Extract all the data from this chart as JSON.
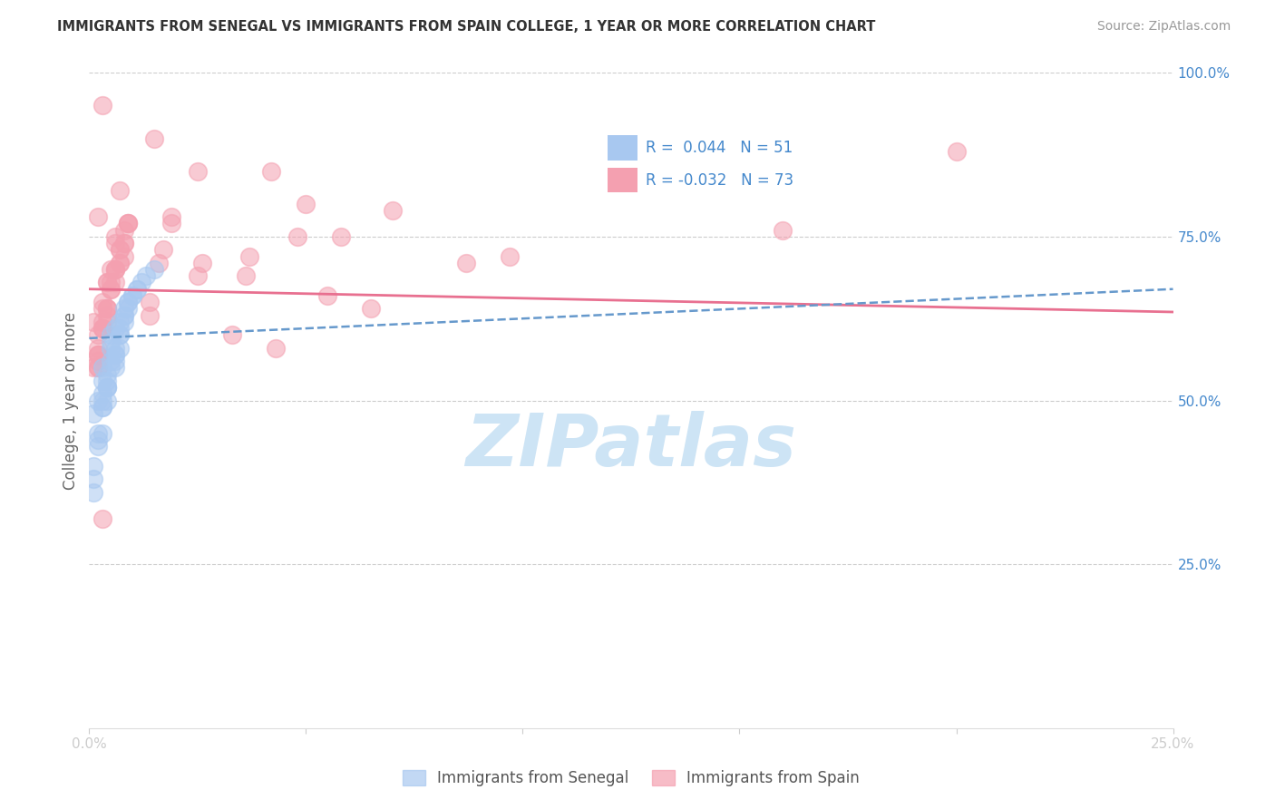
{
  "title": "IMMIGRANTS FROM SENEGAL VS IMMIGRANTS FROM SPAIN COLLEGE, 1 YEAR OR MORE CORRELATION CHART",
  "source_text": "Source: ZipAtlas.com",
  "ylabel": "College, 1 year or more",
  "xlim": [
    0.0,
    0.25
  ],
  "ylim": [
    0.0,
    1.0
  ],
  "xtick_positions": [
    0.0,
    0.05,
    0.1,
    0.15,
    0.2,
    0.25
  ],
  "xtick_labels": [
    "0.0%",
    "",
    "",
    "",
    "",
    "25.0%"
  ],
  "ytick_labels_right": [
    "100.0%",
    "75.0%",
    "50.0%",
    "25.0%"
  ],
  "ytick_positions_right": [
    1.0,
    0.75,
    0.5,
    0.25
  ],
  "background_color": "#ffffff",
  "grid_color": "#cccccc",
  "watermark": "ZIPatlas",
  "watermark_color": "#cde4f5",
  "senegal_color": "#a8c8f0",
  "spain_color": "#f4a0b0",
  "senegal_line_color": "#6699cc",
  "spain_line_color": "#e87090",
  "legend_box_color1": "#a8c8f0",
  "legend_box_color2": "#f4a0b0",
  "legend_text_color": "#4488cc",
  "axis_label_color": "#4488cc",
  "title_color": "#333333",
  "ylabel_color": "#666666",
  "source_color": "#999999",
  "senegal_points_x": [
    0.005,
    0.008,
    0.003,
    0.012,
    0.007,
    0.004,
    0.006,
    0.009,
    0.002,
    0.001,
    0.003,
    0.005,
    0.007,
    0.01,
    0.015,
    0.008,
    0.006,
    0.004,
    0.003,
    0.002,
    0.001,
    0.005,
    0.007,
    0.009,
    0.011,
    0.013,
    0.006,
    0.004,
    0.003,
    0.008,
    0.01,
    0.005,
    0.007,
    0.004,
    0.006,
    0.003,
    0.002,
    0.001,
    0.008,
    0.005,
    0.003,
    0.007,
    0.004,
    0.006,
    0.009,
    0.011,
    0.002,
    0.001,
    0.006,
    0.004,
    0.003
  ],
  "senegal_points_y": [
    0.6,
    0.63,
    0.55,
    0.68,
    0.58,
    0.52,
    0.61,
    0.65,
    0.5,
    0.48,
    0.53,
    0.59,
    0.62,
    0.66,
    0.7,
    0.64,
    0.57,
    0.54,
    0.51,
    0.45,
    0.4,
    0.58,
    0.61,
    0.65,
    0.67,
    0.69,
    0.56,
    0.52,
    0.49,
    0.63,
    0.66,
    0.55,
    0.6,
    0.53,
    0.57,
    0.5,
    0.43,
    0.38,
    0.62,
    0.56,
    0.49,
    0.6,
    0.52,
    0.58,
    0.64,
    0.67,
    0.44,
    0.36,
    0.55,
    0.5,
    0.45
  ],
  "spain_points_x": [
    0.003,
    0.007,
    0.002,
    0.05,
    0.025,
    0.015,
    0.008,
    0.004,
    0.006,
    0.009,
    0.001,
    0.003,
    0.042,
    0.017,
    0.005,
    0.008,
    0.004,
    0.006,
    0.003,
    0.002,
    0.001,
    0.07,
    0.037,
    0.025,
    0.058,
    0.014,
    0.026,
    0.003,
    0.002,
    0.009,
    0.006,
    0.004,
    0.007,
    0.005,
    0.003,
    0.048,
    0.036,
    0.014,
    0.002,
    0.097,
    0.055,
    0.033,
    0.019,
    0.016,
    0.004,
    0.002,
    0.008,
    0.2,
    0.005,
    0.003,
    0.002,
    0.087,
    0.065,
    0.043,
    0.019,
    0.006,
    0.004,
    0.002,
    0.007,
    0.16,
    0.003,
    0.009,
    0.006,
    0.004,
    0.007,
    0.005,
    0.003,
    0.002,
    0.008,
    0.006,
    0.004,
    0.002,
    0.007
  ],
  "spain_points_y": [
    0.95,
    0.82,
    0.78,
    0.8,
    0.85,
    0.9,
    0.72,
    0.68,
    0.75,
    0.77,
    0.62,
    0.65,
    0.85,
    0.73,
    0.7,
    0.76,
    0.68,
    0.74,
    0.64,
    0.6,
    0.55,
    0.79,
    0.72,
    0.69,
    0.75,
    0.65,
    0.71,
    0.61,
    0.57,
    0.77,
    0.7,
    0.64,
    0.73,
    0.68,
    0.62,
    0.75,
    0.69,
    0.63,
    0.57,
    0.72,
    0.66,
    0.6,
    0.78,
    0.71,
    0.64,
    0.58,
    0.74,
    0.88,
    0.67,
    0.61,
    0.55,
    0.71,
    0.64,
    0.58,
    0.77,
    0.7,
    0.63,
    0.57,
    0.71,
    0.76,
    0.32,
    0.77,
    0.7,
    0.64,
    0.73,
    0.67,
    0.61,
    0.55,
    0.74,
    0.68,
    0.62,
    0.56,
    0.71
  ],
  "senegal_trend_x": [
    0.0,
    0.25
  ],
  "senegal_trend_y": [
    0.595,
    0.67
  ],
  "spain_trend_x": [
    0.0,
    0.25
  ],
  "spain_trend_y": [
    0.67,
    0.635
  ]
}
